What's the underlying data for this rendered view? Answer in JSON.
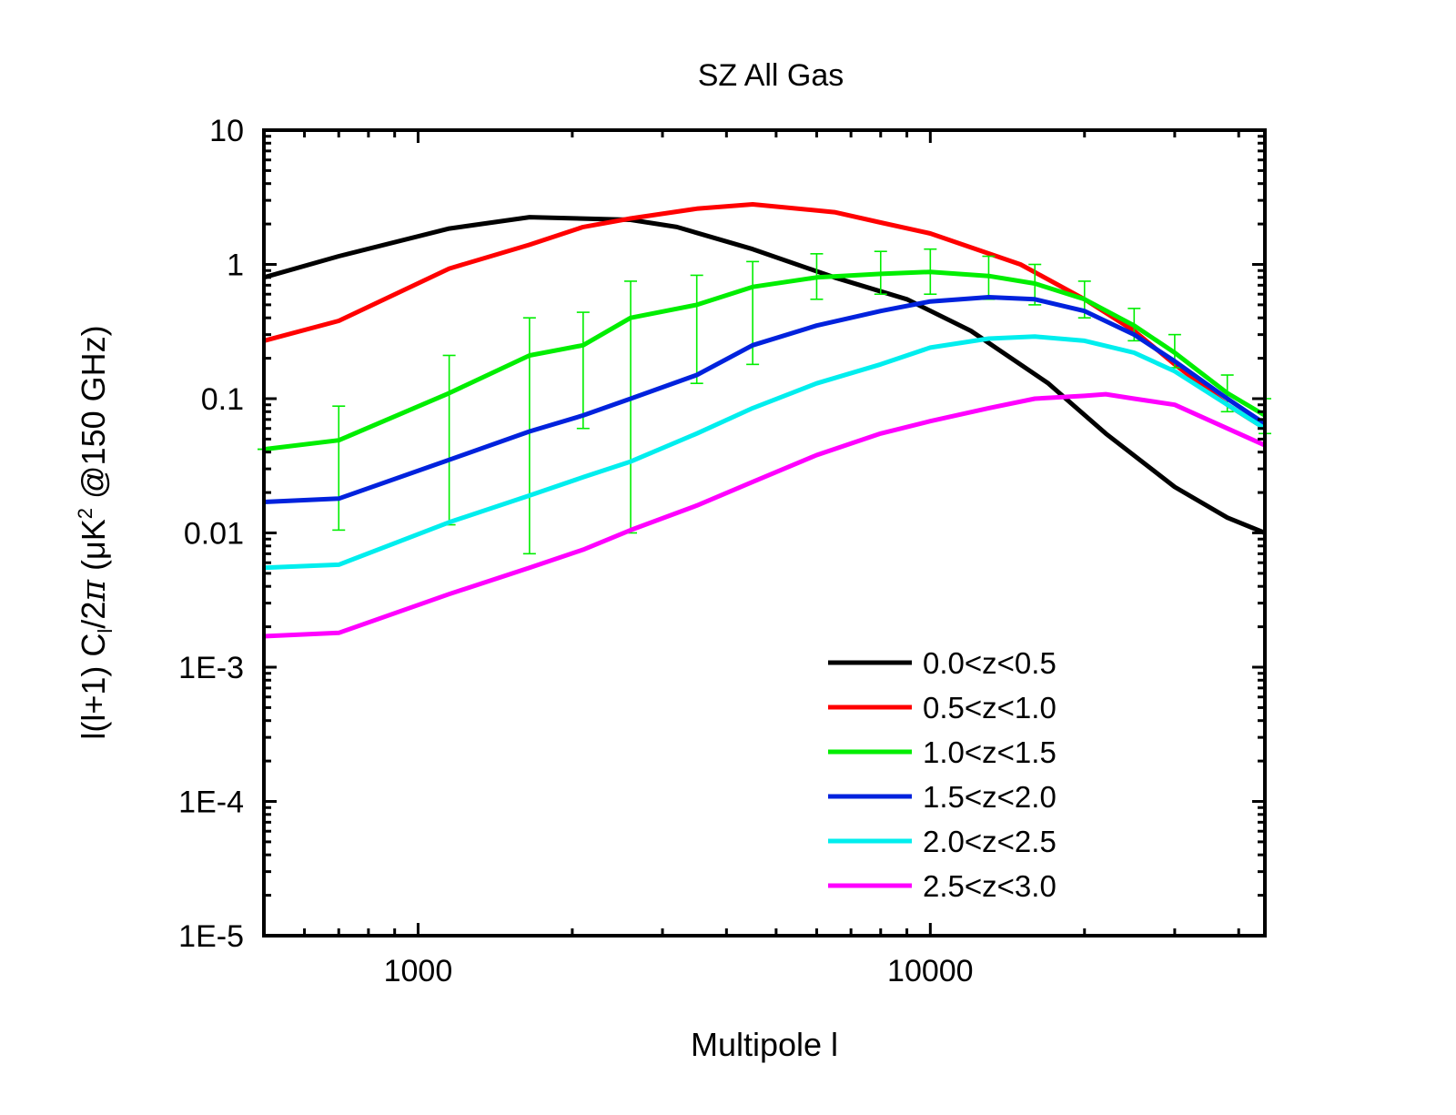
{
  "chart_data": {
    "type": "line",
    "title": "SZ All Gas",
    "xlabel": "Multipole l",
    "ylabel_parts": [
      "l(l+1) C",
      "l",
      "/2",
      "π",
      " (μK",
      "2",
      " @150 GHz)"
    ],
    "xscale": "log",
    "yscale": "log",
    "xlim": [
      500,
      45000
    ],
    "ylim": [
      1e-05,
      10
    ],
    "x_ticks": [
      1000,
      10000
    ],
    "x_tick_labels": [
      "1000",
      "10000"
    ],
    "y_ticks": [
      1e-05,
      0.0001,
      0.001,
      0.01,
      0.1,
      1,
      10
    ],
    "y_tick_labels": [
      "1E-5",
      "1E-4",
      "1E-3",
      "0.01",
      "0.1",
      "1",
      "10"
    ],
    "legend_position": "bottom-right",
    "series": [
      {
        "name": "0.0<z<0.5",
        "color": "#000000",
        "x": [
          500,
          700,
          1150,
          1650,
          2600,
          3200,
          4500,
          6500,
          9000,
          12000,
          17000,
          22000,
          30000,
          38000,
          45000
        ],
        "y": [
          0.8,
          1.15,
          1.85,
          2.25,
          2.15,
          1.9,
          1.3,
          0.8,
          0.55,
          0.32,
          0.13,
          0.055,
          0.022,
          0.013,
          0.01
        ]
      },
      {
        "name": "0.5<z<1.0",
        "color": "#ff0000",
        "x": [
          500,
          700,
          1150,
          1650,
          2100,
          2600,
          3500,
          4500,
          6500,
          8000,
          10000,
          15000,
          20000,
          25000,
          30000,
          38000,
          45000
        ],
        "y": [
          0.27,
          0.38,
          0.93,
          1.4,
          1.9,
          2.2,
          2.6,
          2.8,
          2.45,
          2.05,
          1.7,
          1.0,
          0.55,
          0.32,
          0.18,
          0.09,
          0.06
        ]
      },
      {
        "name": "1.0<z<1.5",
        "color": "#00ee00",
        "errorbars": true,
        "x": [
          500,
          700,
          1150,
          1650,
          2100,
          2600,
          3500,
          4500,
          6000,
          8000,
          10000,
          13000,
          16000,
          20000,
          25000,
          30000,
          38000,
          45000
        ],
        "y": [
          0.042,
          0.049,
          0.11,
          0.21,
          0.25,
          0.4,
          0.5,
          0.68,
          0.8,
          0.85,
          0.88,
          0.82,
          0.72,
          0.55,
          0.35,
          0.22,
          0.11,
          0.075
        ],
        "yerr_low": [
          0.042,
          0.0105,
          0.0115,
          0.007,
          0.06,
          0.01,
          0.13,
          0.18,
          0.55,
          0.6,
          0.6,
          0.55,
          0.5,
          0.4,
          0.27,
          0.17,
          0.08,
          0.055
        ],
        "yerr_high": [
          0.042,
          0.088,
          0.21,
          0.4,
          0.44,
          0.75,
          0.83,
          1.05,
          1.2,
          1.25,
          1.3,
          1.15,
          1.0,
          0.75,
          0.47,
          0.3,
          0.15,
          0.1
        ]
      },
      {
        "name": "1.5<z<2.0",
        "color": "#0022dd",
        "x": [
          500,
          700,
          1150,
          1650,
          2100,
          2600,
          3500,
          4500,
          6000,
          8000,
          10000,
          13000,
          16000,
          20000,
          25000,
          30000,
          38000,
          45000
        ],
        "y": [
          0.017,
          0.018,
          0.035,
          0.057,
          0.075,
          0.1,
          0.15,
          0.25,
          0.35,
          0.45,
          0.53,
          0.57,
          0.55,
          0.45,
          0.3,
          0.19,
          0.1,
          0.065
        ]
      },
      {
        "name": "2.0<z<2.5",
        "color": "#00eeee",
        "x": [
          500,
          700,
          1150,
          1650,
          2100,
          2600,
          3500,
          4500,
          6000,
          8000,
          10000,
          13000,
          16000,
          20000,
          25000,
          30000,
          38000,
          45000
        ],
        "y": [
          0.0055,
          0.0058,
          0.012,
          0.019,
          0.026,
          0.034,
          0.055,
          0.085,
          0.13,
          0.18,
          0.24,
          0.28,
          0.29,
          0.27,
          0.22,
          0.16,
          0.09,
          0.06
        ]
      },
      {
        "name": "2.5<z<3.0",
        "color": "#ff00ff",
        "x": [
          500,
          700,
          1150,
          1650,
          2100,
          2600,
          3500,
          4500,
          6000,
          8000,
          10000,
          13000,
          16000,
          20000,
          22000,
          25000,
          30000,
          38000,
          45000
        ],
        "y": [
          0.0017,
          0.0018,
          0.0035,
          0.0055,
          0.0075,
          0.0105,
          0.016,
          0.024,
          0.038,
          0.055,
          0.068,
          0.085,
          0.1,
          0.105,
          0.108,
          0.1,
          0.09,
          0.06,
          0.045
        ]
      }
    ]
  }
}
